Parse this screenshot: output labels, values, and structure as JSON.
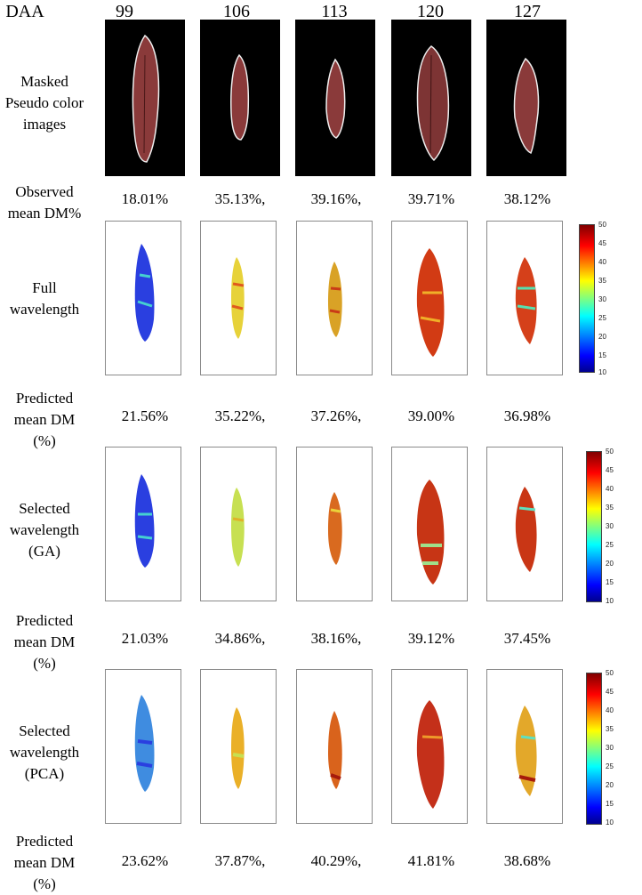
{
  "daa_label": "DAA",
  "columns": [
    "99",
    "106",
    "113",
    "120",
    "127"
  ],
  "rows": {
    "masked": [
      "Masked",
      "Pseudo color",
      "images"
    ],
    "observed": [
      "Observed",
      "mean DM%"
    ],
    "full": [
      "Full",
      "wavelength"
    ],
    "pred1": [
      "Predicted",
      "mean DM",
      "(%)"
    ],
    "ga": [
      "Selected",
      "wavelength",
      "(GA)"
    ],
    "pred2": [
      "Predicted",
      "mean DM",
      "(%)"
    ],
    "pca": [
      "Selected",
      "wavelength",
      "(PCA)"
    ],
    "pred3": [
      "Predicted",
      "mean DM",
      "(%)"
    ]
  },
  "values": {
    "observed": [
      "18.01%",
      "35.13%,",
      "39.16%,",
      "39.71%",
      "38.12%"
    ],
    "pred_full": [
      "21.56%",
      "35.22%,",
      "37.26%,",
      "39.00%",
      "36.98%"
    ],
    "pred_ga": [
      "21.03%",
      "34.86%,",
      "38.16%,",
      "39.12%",
      "37.45%"
    ],
    "pred_pca": [
      "23.62%",
      "37.87%,",
      "40.29%,",
      "41.81%",
      "38.68%"
    ]
  },
  "colorbar_ticks": [
    "50",
    "45",
    "40",
    "35",
    "30",
    "25",
    "20",
    "15",
    "10"
  ],
  "colormap": {
    "low": "#0000ff",
    "mid": "#ffff00",
    "high": "#800000"
  }
}
